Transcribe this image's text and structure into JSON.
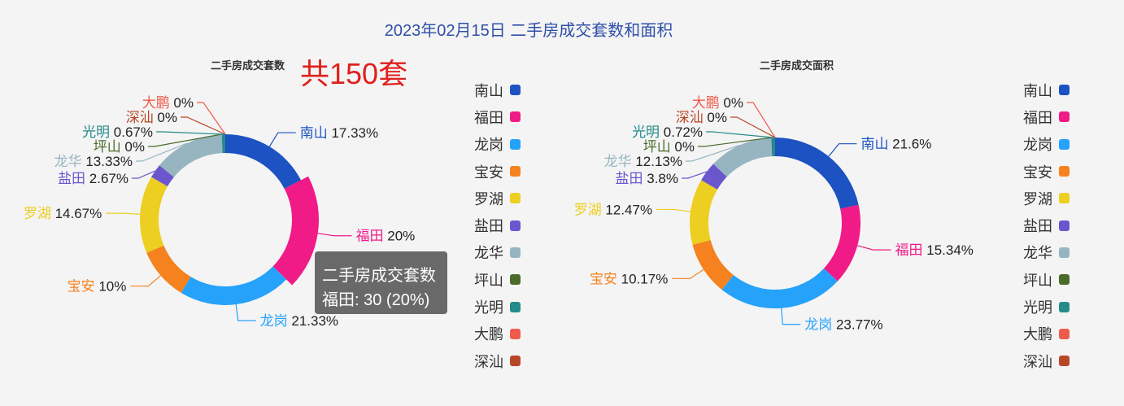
{
  "title": "2023年02月15日 二手房成交套数和面积",
  "legend": {
    "items": [
      {
        "name": "南山",
        "color": "#1c52c2"
      },
      {
        "name": "福田",
        "color": "#f01b87"
      },
      {
        "name": "龙岗",
        "color": "#26a2fa"
      },
      {
        "name": "宝安",
        "color": "#f5821f"
      },
      {
        "name": "罗湖",
        "color": "#eccf21"
      },
      {
        "name": "盐田",
        "color": "#6b56ce"
      },
      {
        "name": "龙华",
        "color": "#96b5c1"
      },
      {
        "name": "坪山",
        "color": "#4b6b2b"
      },
      {
        "name": "光明",
        "color": "#268a8a"
      },
      {
        "name": "大鹏",
        "color": "#ef5b4a"
      },
      {
        "name": "深汕",
        "color": "#b84726"
      }
    ]
  },
  "tooltip": {
    "title": "二手房成交套数",
    "text": "福田: 30 (20%)"
  },
  "chart_data": [
    {
      "type": "pie",
      "title": "二手房成交套数",
      "annotation": "共150套",
      "categories": [
        "南山",
        "福田",
        "龙岗",
        "宝安",
        "罗湖",
        "盐田",
        "龙华",
        "坪山",
        "光明",
        "大鹏",
        "深汕"
      ],
      "values": [
        26,
        30,
        32,
        15,
        22,
        4,
        20,
        0,
        1,
        0,
        0
      ],
      "labels": [
        "17.33%",
        "20%",
        "21.33%",
        "10%",
        "14.67%",
        "2.67%",
        "13.33%",
        "0%",
        "0.67%",
        "0%",
        "0%"
      ],
      "highlighted": "福田"
    },
    {
      "type": "pie",
      "title": "二手房成交面积",
      "categories": [
        "南山",
        "福田",
        "龙岗",
        "宝安",
        "罗湖",
        "盐田",
        "龙华",
        "坪山",
        "光明",
        "大鹏",
        "深汕"
      ],
      "values": [
        21.6,
        15.34,
        23.77,
        10.17,
        12.47,
        3.8,
        12.13,
        0,
        0.72,
        0,
        0
      ],
      "labels": [
        "21.6%",
        "15.34%",
        "23.77%",
        "10.17%",
        "12.47%",
        "3.8%",
        "12.13%",
        "0%",
        "0.72%",
        "0%",
        "0%"
      ]
    }
  ]
}
